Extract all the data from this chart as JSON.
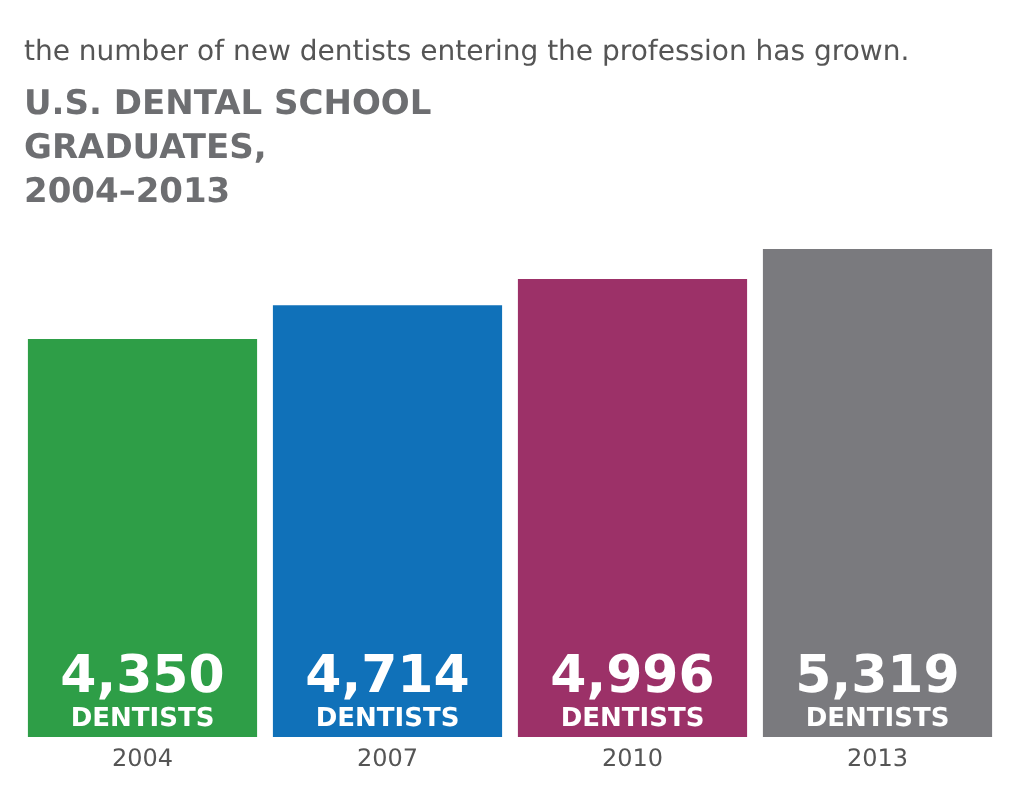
{
  "chart_data": {
    "type": "bar",
    "title": "U.S. DENTAL SCHOOL GRADUATES, 2004–2013",
    "subtitle": "the number of new dentists entering the profession has grown.",
    "categories": [
      "2004",
      "2007",
      "2010",
      "2013"
    ],
    "values": [
      4350,
      4714,
      4996,
      5319
    ],
    "colors": [
      "#2e9e47",
      "#1071b9",
      "#9c3168",
      "#7a7a7e"
    ],
    "value_labels": [
      "4,350 DENTISTS",
      "4,714 DENTISTS",
      "4,996 DENTISTS",
      "5,319 DENTISTS"
    ]
  }
}
